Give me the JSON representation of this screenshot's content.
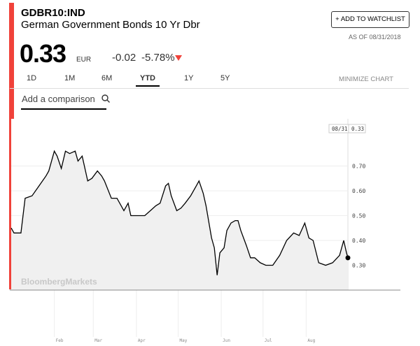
{
  "header": {
    "ticker": "GDBR10:IND",
    "name": "German Government Bonds 10 Yr Dbr",
    "price": "0.33",
    "currency": "EUR",
    "change": "-0.02",
    "change_pct": "-5.78%",
    "watchlist": "+ ADD TO WATCHLIST",
    "as_of": "AS OF 08/31/2018",
    "tabs": [
      "1D",
      "1M",
      "6M",
      "YTD",
      "1Y",
      "5Y"
    ],
    "active_tab": 3,
    "minimize": "MINIMIZE CHART",
    "comparison": "Add a comparison"
  },
  "chart_data": {
    "type": "area",
    "watermark": "BloombergMarkets",
    "last_date": "08/31",
    "color": "#000000",
    "x": [
      0,
      2,
      7,
      10,
      15,
      20,
      25,
      27,
      31,
      33,
      36,
      39,
      42,
      46,
      48,
      51,
      55,
      58,
      62,
      65,
      67,
      72,
      76,
      81,
      84,
      86,
      92,
      96,
      100,
      104,
      107,
      111,
      113,
      115,
      119,
      122,
      125,
      129,
      133,
      135,
      138,
      140,
      144,
      146,
      148,
      150,
      153,
      155,
      158,
      161,
      163,
      165,
      169,
      172,
      175,
      179,
      183,
      188,
      193,
      198,
      203,
      207,
      211,
      214,
      217,
      221,
      226,
      231,
      236,
      239,
      241,
      242
    ],
    "values": [
      0.45,
      0.43,
      0.43,
      0.57,
      0.58,
      0.62,
      0.66,
      0.68,
      0.76,
      0.74,
      0.69,
      0.76,
      0.75,
      0.76,
      0.72,
      0.74,
      0.64,
      0.65,
      0.68,
      0.66,
      0.64,
      0.57,
      0.57,
      0.52,
      0.55,
      0.5,
      0.5,
      0.5,
      0.52,
      0.54,
      0.55,
      0.62,
      0.63,
      0.58,
      0.52,
      0.53,
      0.55,
      0.58,
      0.62,
      0.64,
      0.59,
      0.54,
      0.41,
      0.37,
      0.26,
      0.35,
      0.37,
      0.44,
      0.47,
      0.48,
      0.48,
      0.44,
      0.38,
      0.33,
      0.33,
      0.31,
      0.3,
      0.3,
      0.34,
      0.4,
      0.43,
      0.42,
      0.47,
      0.41,
      0.4,
      0.31,
      0.3,
      0.31,
      0.34,
      0.4,
      0.35,
      0.33
    ],
    "xlim": [
      0,
      242
    ],
    "xticks": [
      {
        "value": 31,
        "label": "Feb"
      },
      {
        "value": 59,
        "label": "Mar"
      },
      {
        "value": 90,
        "label": "Apr"
      },
      {
        "value": 120,
        "label": "May"
      },
      {
        "value": 151,
        "label": "Jun"
      },
      {
        "value": 181,
        "label": "Jul"
      },
      {
        "value": 212,
        "label": "Aug"
      }
    ],
    "ylim": [
      0.2,
      0.89
    ],
    "yticks": [
      {
        "value": 0.3,
        "label": "0.30"
      },
      {
        "value": 0.4,
        "label": "0.40"
      },
      {
        "value": 0.5,
        "label": "0.50"
      },
      {
        "value": 0.6,
        "label": "0.60"
      },
      {
        "value": 0.7,
        "label": "0.70"
      }
    ],
    "grid": true
  }
}
